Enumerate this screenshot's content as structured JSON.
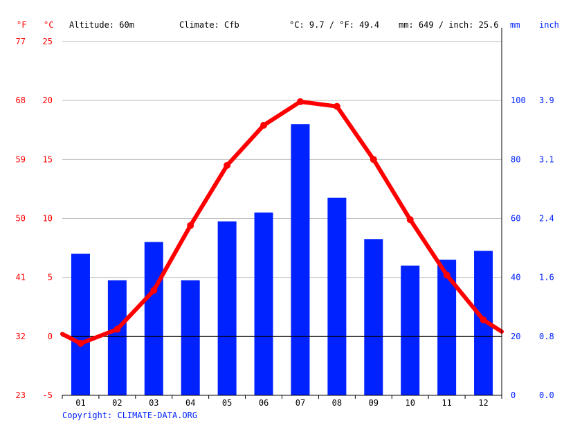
{
  "header": {
    "unit_f": "°F",
    "unit_c": "°C",
    "altitude": "Altitude: 60m",
    "climate": "Climate: Cfb",
    "temp_avg": "°C: 9.7 / °F: 49.4",
    "precip_total": "mm: 649 / inch: 25.6",
    "unit_mm": "mm",
    "unit_inch": "inch"
  },
  "copyright": "Copyright: CLIMATE-DATA.ORG",
  "colors": {
    "temperature": "#ff0000",
    "precipitation": "#0022ff",
    "axis_right": "#0022ff",
    "axis_left": "#ff0000",
    "grid": "#bbbbbb"
  },
  "chart_data": {
    "type": "bar",
    "categories": [
      "01",
      "02",
      "03",
      "04",
      "05",
      "06",
      "07",
      "08",
      "09",
      "10",
      "11",
      "12"
    ],
    "series": [
      {
        "type": "bar",
        "values": [
          48,
          39,
          52,
          39,
          59,
          62,
          92,
          67,
          53,
          44,
          46,
          49
        ]
      },
      {
        "type": "line",
        "values": [
          -0.6,
          0.6,
          3.9,
          9.4,
          14.5,
          17.9,
          19.9,
          19.5,
          15.0,
          9.9,
          5.2,
          1.4
        ]
      }
    ],
    "left_axis_c": {
      "ylim": [
        -5,
        25
      ],
      "ticks": [
        "-5",
        "0",
        "5",
        "10",
        "15",
        "20",
        "25"
      ]
    },
    "left_axis_f": {
      "ticks": [
        "23",
        "32",
        "41",
        "50",
        "59",
        "68",
        "77"
      ]
    },
    "right_axis_mm": {
      "ylim": [
        0,
        120
      ],
      "ticks": [
        "0",
        "20",
        "40",
        "60",
        "80",
        "100"
      ]
    },
    "right_axis_inch": {
      "ticks": [
        "0.0",
        "0.8",
        "1.6",
        "2.4",
        "3.1",
        "3.9"
      ]
    },
    "line_start_c": 0.2,
    "line_end_c": 0.4,
    "grid": true
  }
}
